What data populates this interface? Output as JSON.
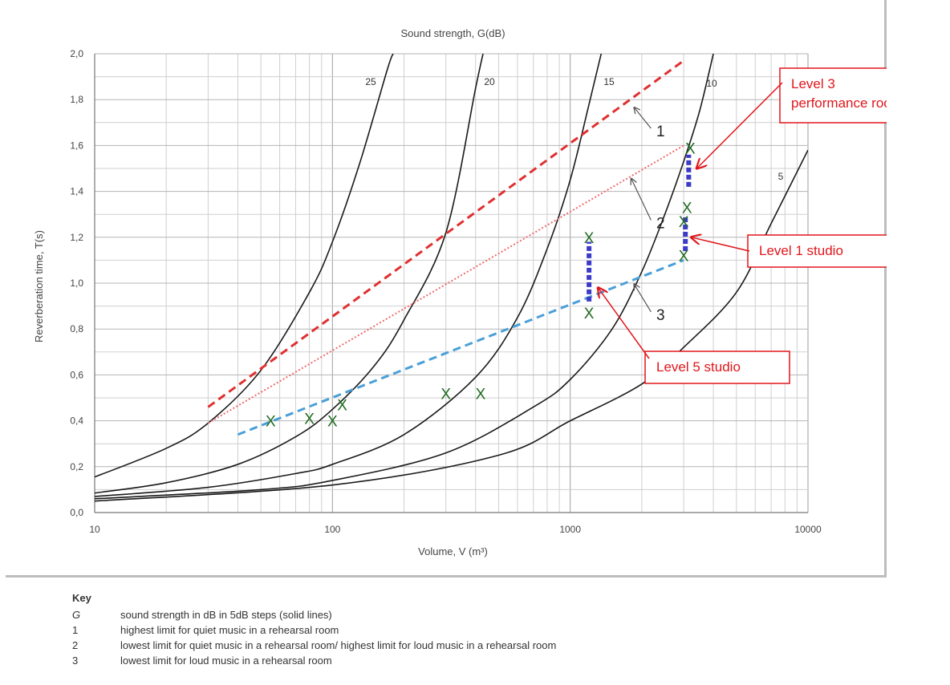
{
  "chart_data": {
    "type": "line",
    "title": "Sound strength, G(dB)",
    "xlabel": "Volume, V (m³)",
    "ylabel": "Reverberation time, T(s)",
    "xscale": "log",
    "xlim": [
      10,
      10000
    ],
    "ylim": [
      0,
      2.0
    ],
    "grid": true,
    "x_ticks": [
      "10",
      "100",
      "1000",
      "10000"
    ],
    "y_ticks": [
      "0,0",
      "0,2",
      "0,4",
      "0,6",
      "0,8",
      "1,0",
      "1,2",
      "1,4",
      "1,6",
      "1,8",
      "2,0"
    ],
    "g_curves": [
      {
        "label": "25",
        "x": [
          10,
          20,
          30,
          50,
          80,
          100,
          130,
          170,
          180
        ],
        "y": [
          0.155,
          0.28,
          0.39,
          0.62,
          0.96,
          1.18,
          1.52,
          1.93,
          2.0
        ]
      },
      {
        "label": "20",
        "x": [
          10,
          20,
          40,
          70,
          100,
          150,
          200,
          300,
          400,
          430
        ],
        "y": [
          0.085,
          0.13,
          0.21,
          0.33,
          0.45,
          0.64,
          0.84,
          1.22,
          1.85,
          2.0
        ]
      },
      {
        "label": "15",
        "x": [
          10,
          30,
          70,
          100,
          200,
          400,
          600,
          800,
          1000,
          1200,
          1350
        ],
        "y": [
          0.07,
          0.11,
          0.17,
          0.21,
          0.34,
          0.59,
          0.85,
          1.15,
          1.45,
          1.78,
          2.0
        ]
      },
      {
        "label": "10",
        "x": [
          10,
          50,
          100,
          300,
          700,
          1000,
          1500,
          2000,
          2500,
          3000,
          3500,
          4000
        ],
        "y": [
          0.06,
          0.1,
          0.14,
          0.26,
          0.46,
          0.58,
          0.8,
          1.05,
          1.3,
          1.53,
          1.75,
          2.0
        ]
      },
      {
        "label": "5",
        "x": [
          10,
          100,
          500,
          1000,
          2000,
          3000,
          5000,
          7000,
          10000
        ],
        "y": [
          0.05,
          0.12,
          0.25,
          0.4,
          0.56,
          0.72,
          0.96,
          1.26,
          1.58
        ]
      }
    ],
    "limit_lines": [
      {
        "name": "1",
        "color": "#e03030",
        "style": "dashed",
        "x": [
          30,
          3000
        ],
        "y": [
          0.46,
          1.97
        ]
      },
      {
        "name": "2",
        "color": "#ef6b6b",
        "style": "dotted",
        "x": [
          30,
          3000
        ],
        "y": [
          0.39,
          1.6
        ]
      },
      {
        "name": "3",
        "color": "#4a9fd8",
        "style": "dashed",
        "x": [
          40,
          3000
        ],
        "y": [
          0.34,
          1.1
        ]
      }
    ],
    "measurement_markers": [
      {
        "x": 55,
        "y": 0.4
      },
      {
        "x": 80,
        "y": 0.41
      },
      {
        "x": 100,
        "y": 0.4
      },
      {
        "x": 110,
        "y": 0.47
      },
      {
        "x": 300,
        "y": 0.52
      },
      {
        "x": 420,
        "y": 0.52
      },
      {
        "x": 1200,
        "y": 1.2
      },
      {
        "x": 1200,
        "y": 0.87
      },
      {
        "x": 3200,
        "y": 1.59
      },
      {
        "x": 3100,
        "y": 1.33
      },
      {
        "x": 3000,
        "y": 1.27
      },
      {
        "x": 3000,
        "y": 1.12
      }
    ],
    "range_bars": [
      {
        "x": 1200,
        "y": [
          0.92,
          1.18
        ]
      },
      {
        "x": 3150,
        "y": [
          1.42,
          1.56
        ]
      },
      {
        "x": 3050,
        "y": [
          1.14,
          1.29
        ]
      }
    ],
    "line_labels": [
      {
        "text": "1",
        "x": 2400,
        "y": 1.64,
        "arrow_to": [
          1800,
          1.78
        ]
      },
      {
        "text": "2",
        "x": 2400,
        "y": 1.24,
        "arrow_to": [
          1750,
          1.47
        ]
      },
      {
        "text": "3",
        "x": 2400,
        "y": 0.84,
        "arrow_to": [
          1800,
          1.01
        ]
      }
    ],
    "callouts": [
      {
        "lines": [
          "Level 3",
          "performance room"
        ],
        "target": [
          3250,
          1.5
        ]
      },
      {
        "lines": [
          "Level 1 studio"
        ],
        "target": [
          3080,
          1.2
        ]
      },
      {
        "lines": [
          "Level 5 studio"
        ],
        "target": [
          1250,
          0.98
        ]
      }
    ]
  },
  "key": {
    "title": "Key",
    "rows": [
      {
        "symbol": "G",
        "text": "sound strength in dB in 5dB steps (solid lines)"
      },
      {
        "symbol": "1",
        "text": "highest limit for quiet music in a rehearsal room"
      },
      {
        "symbol": "2",
        "text": "lowest limit for quiet music in a rehearsal room/ highest limit for loud music in a rehearsal room"
      },
      {
        "symbol": "3",
        "text": "lowest limit for loud music in a rehearsal room"
      }
    ]
  },
  "colors": {
    "curve": "#1a1a1a",
    "grid": "#cfcfcf",
    "marker": "#1f6b1f",
    "range_bar": "#3b3bc8",
    "callout": "#e0161b",
    "arrow": "#555555"
  },
  "icons": {
    "marker": "x-marker",
    "pointer": "arrow"
  }
}
